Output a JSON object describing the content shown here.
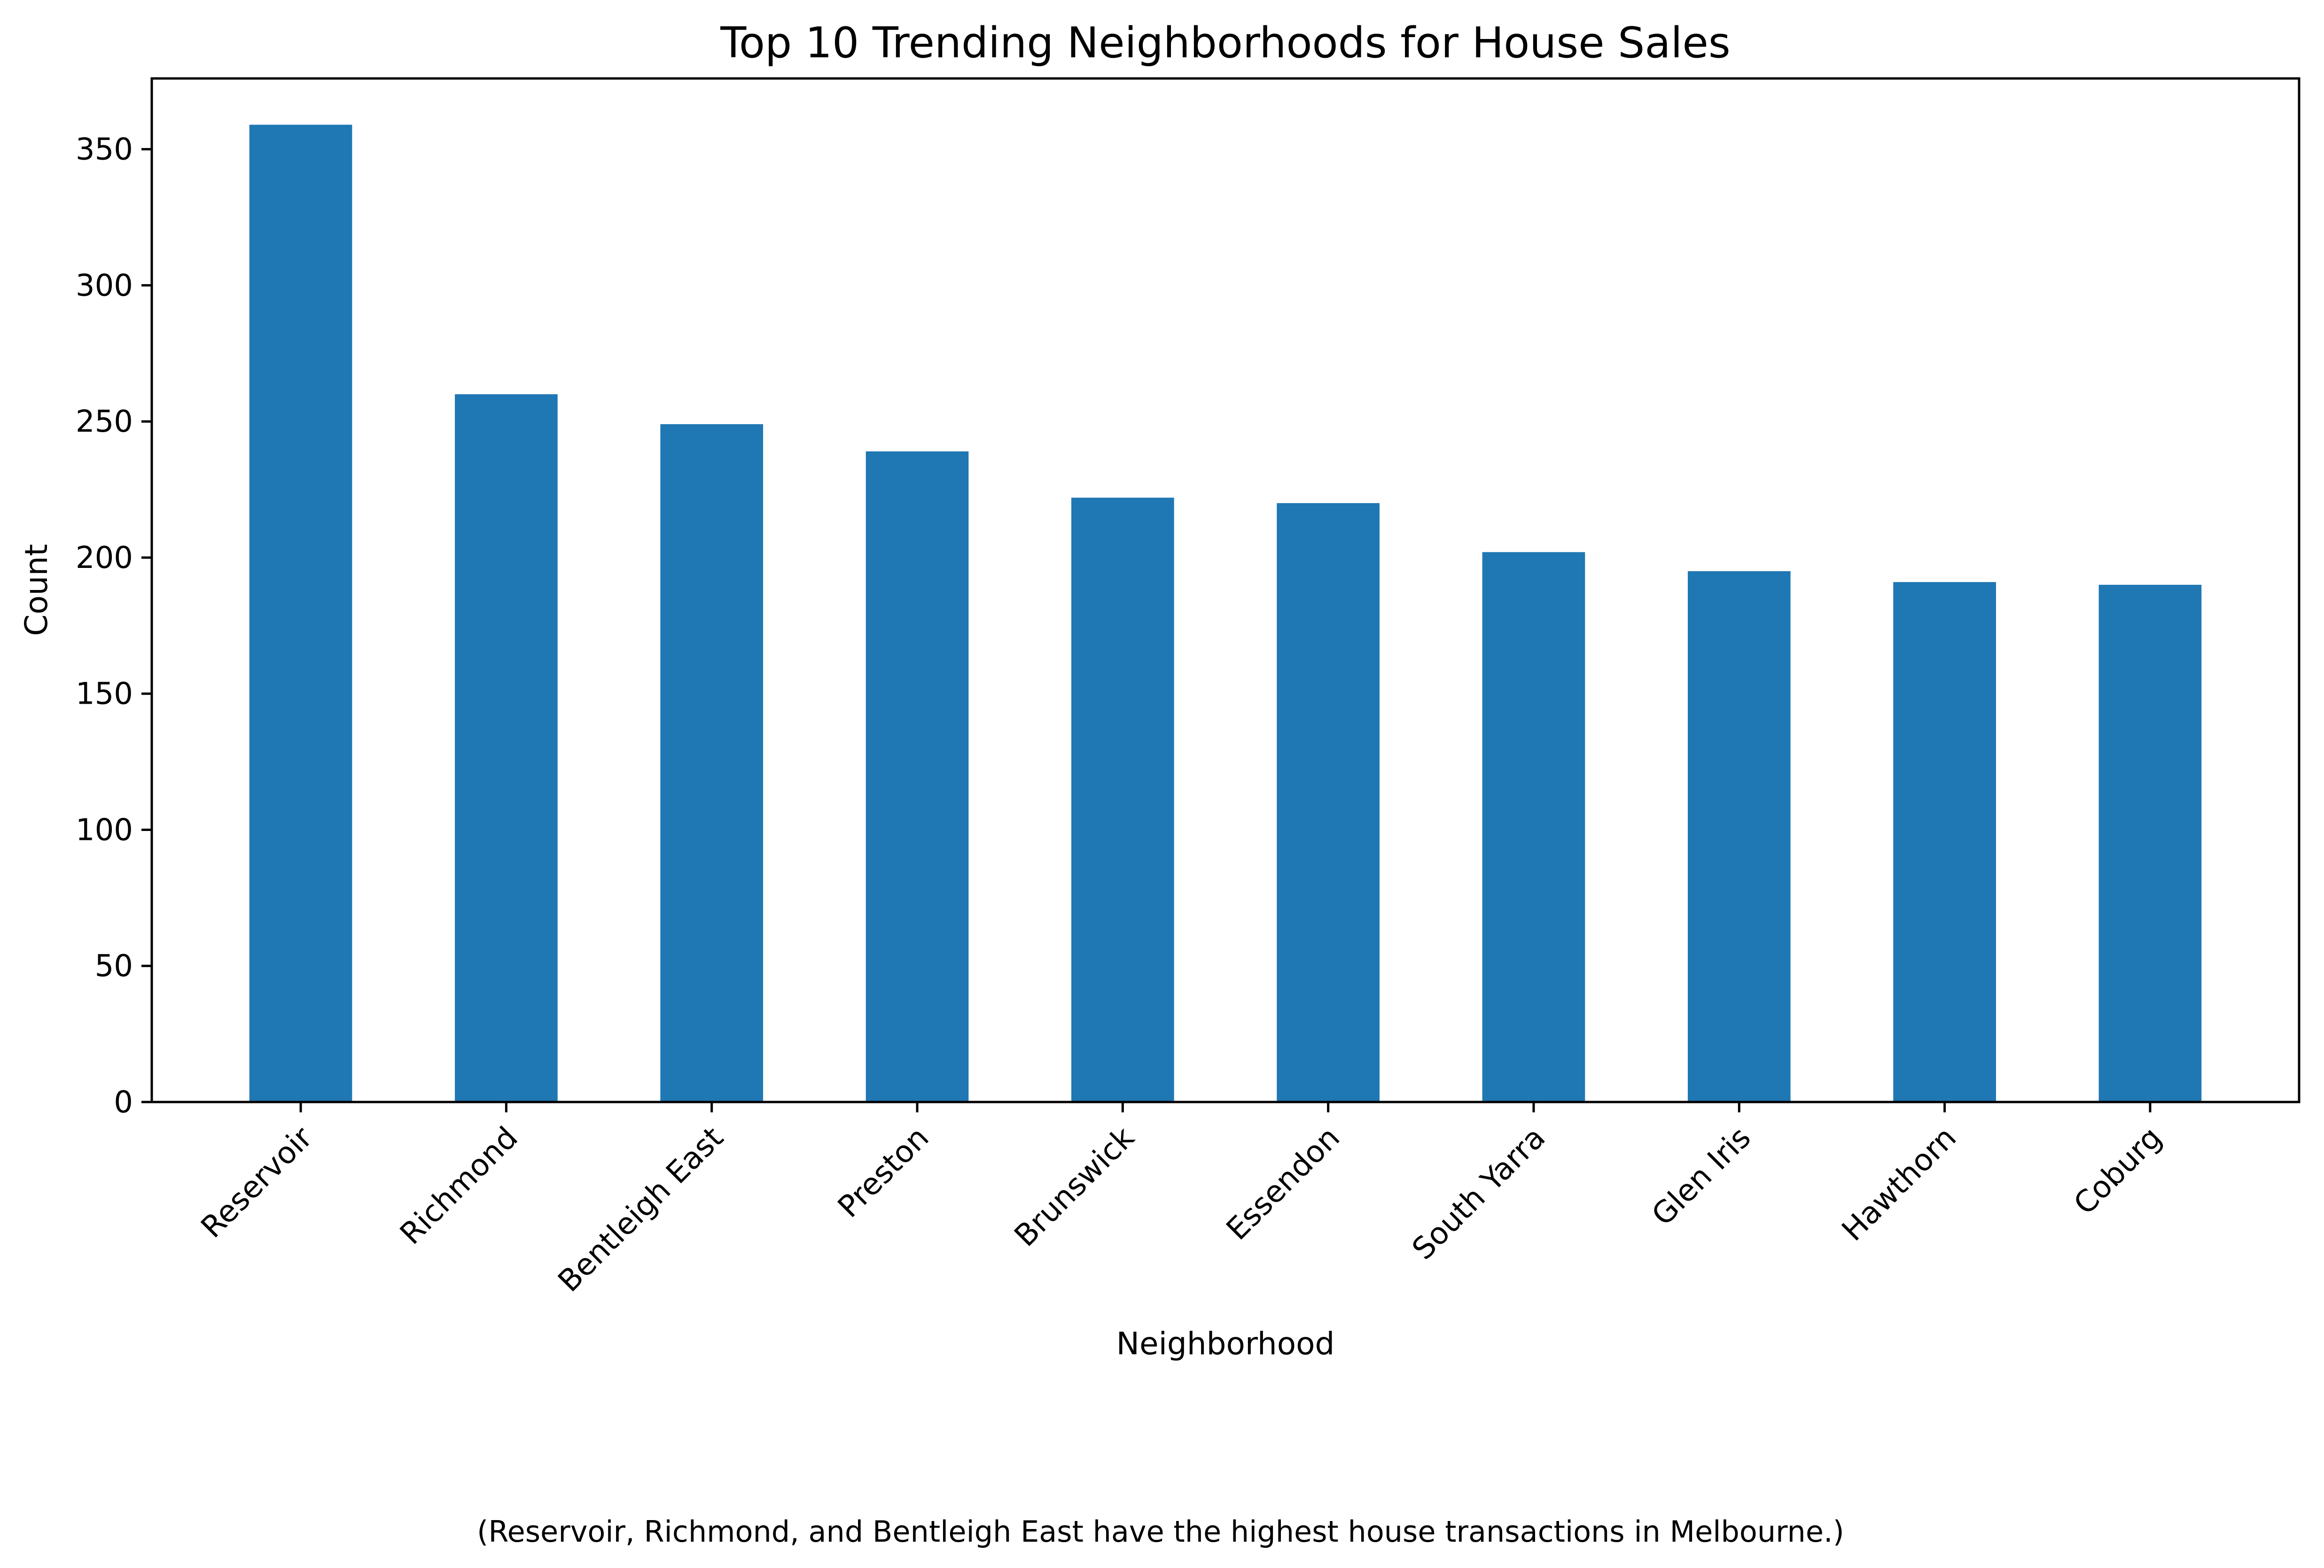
{
  "chart_data": {
    "type": "bar",
    "title": "Top 10 Trending Neighborhoods for House Sales",
    "xlabel": "Neighborhood",
    "ylabel": "Count",
    "categories": [
      "Reservoir",
      "Richmond",
      "Bentleigh East",
      "Preston",
      "Brunswick",
      "Essendon",
      "South Yarra",
      "Glen Iris",
      "Hawthorn",
      "Coburg"
    ],
    "values": [
      359,
      260,
      249,
      239,
      222,
      220,
      202,
      195,
      191,
      190
    ],
    "ylim": [
      0,
      376
    ],
    "yticks": [
      0,
      50,
      100,
      150,
      200,
      250,
      300,
      350
    ],
    "grid": false,
    "legend": "none",
    "bar_color": "#1f77b4",
    "caption": "(Reservoir, Richmond, and Bentleigh East have the highest house transactions in Melbourne.)"
  }
}
